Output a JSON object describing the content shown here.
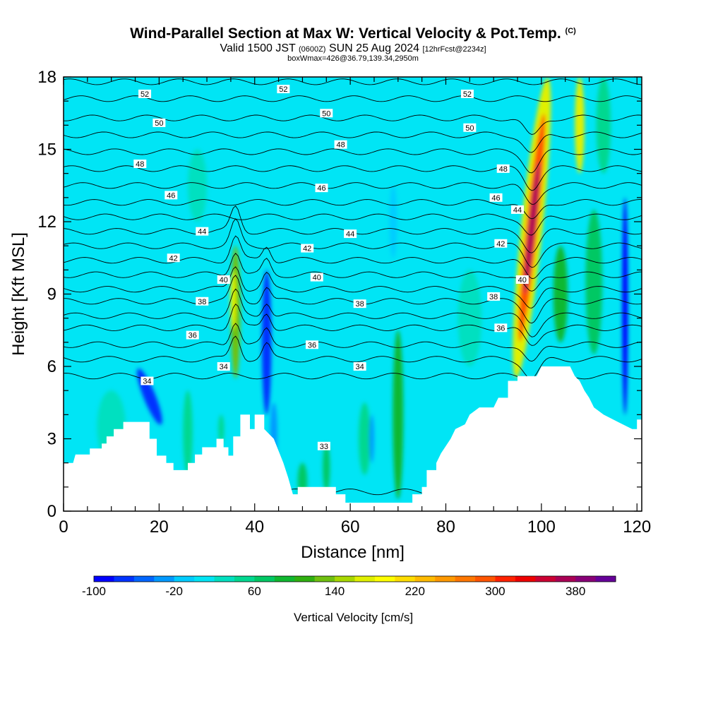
{
  "header": {
    "title": "Wind-Parallel Section at Max W: Vertical Velocity & Pot.Temp.",
    "copyright": "(C)",
    "valid_text": "Valid 1500 JST",
    "utc_text": "(0600Z)",
    "date_text": "SUN 25 Aug 2024",
    "forecast_text": "[12hrFcst@2234z]",
    "box_text": "boxWmax=426@36.79,139.34,2950m"
  },
  "chart_data": {
    "type": "heatmap",
    "xlabel": "Distance [nm]",
    "ylabel": "Height [Kft MSL]",
    "xlim": [
      0,
      121
    ],
    "ylim": [
      0,
      18
    ],
    "x_ticks": [
      0,
      20,
      40,
      60,
      80,
      100,
      120
    ],
    "y_ticks": [
      0,
      3,
      6,
      9,
      12,
      15,
      18
    ],
    "background_value_cm_s": 0,
    "terrain_kft": [
      [
        0,
        2.0
      ],
      [
        2,
        2.0
      ],
      [
        2.5,
        2.35
      ],
      [
        5.5,
        2.35
      ],
      [
        5.5,
        2.6
      ],
      [
        8,
        2.6
      ],
      [
        8,
        2.8
      ],
      [
        9,
        2.8
      ],
      [
        9,
        3.1
      ],
      [
        10.5,
        3.1
      ],
      [
        10.5,
        3.4
      ],
      [
        12.5,
        3.4
      ],
      [
        12.5,
        3.7
      ],
      [
        18,
        3.7
      ],
      [
        18,
        3.0
      ],
      [
        19.5,
        3.0
      ],
      [
        19.5,
        2.3
      ],
      [
        21.5,
        2.3
      ],
      [
        21.5,
        2.0
      ],
      [
        23,
        2.0
      ],
      [
        23,
        1.7
      ],
      [
        26,
        1.7
      ],
      [
        26,
        2.0
      ],
      [
        27.5,
        2.0
      ],
      [
        27.5,
        2.35
      ],
      [
        29,
        2.35
      ],
      [
        29,
        2.65
      ],
      [
        32,
        2.65
      ],
      [
        32,
        3.0
      ],
      [
        33.5,
        3.0
      ],
      [
        33.5,
        2.65
      ],
      [
        34.5,
        2.65
      ],
      [
        34.5,
        2.3
      ],
      [
        35.5,
        2.3
      ],
      [
        35.5,
        3.1
      ],
      [
        37,
        3.1
      ],
      [
        37,
        4.0
      ],
      [
        39,
        4.0
      ],
      [
        39,
        3.4
      ],
      [
        40,
        3.4
      ],
      [
        40,
        4.0
      ],
      [
        42,
        4.0
      ],
      [
        42,
        3.4
      ],
      [
        44,
        3.0
      ],
      [
        46,
        2.0
      ],
      [
        47,
        1.4
      ],
      [
        48,
        0.7
      ],
      [
        49,
        0.7
      ],
      [
        49,
        1.0
      ],
      [
        57,
        1.0
      ],
      [
        57,
        0.7
      ],
      [
        59,
        0.7
      ],
      [
        59,
        0.35
      ],
      [
        73,
        0.35
      ],
      [
        73,
        0.7
      ],
      [
        75,
        0.7
      ],
      [
        75,
        1.0
      ],
      [
        76,
        1.0
      ],
      [
        76,
        1.7
      ],
      [
        78,
        1.7
      ],
      [
        78,
        2.0
      ],
      [
        79,
        2.4
      ],
      [
        80,
        2.7
      ],
      [
        81,
        3.0
      ],
      [
        82,
        3.4
      ],
      [
        84,
        3.6
      ],
      [
        85,
        4.0
      ],
      [
        87,
        4.3
      ],
      [
        90,
        4.3
      ],
      [
        91,
        4.7
      ],
      [
        93,
        4.7
      ],
      [
        93,
        5.4
      ],
      [
        95,
        5.4
      ],
      [
        95,
        5.6
      ],
      [
        96,
        5.6
      ],
      [
        96,
        5.6
      ],
      [
        99,
        5.6
      ],
      [
        100,
        6.0
      ],
      [
        106,
        6.0
      ],
      [
        107,
        5.6
      ],
      [
        108,
        5.4
      ],
      [
        109,
        5.0
      ],
      [
        110,
        4.7
      ],
      [
        111,
        4.3
      ],
      [
        113,
        4.0
      ],
      [
        116,
        3.7
      ],
      [
        119,
        3.4
      ],
      [
        120,
        3.4
      ],
      [
        120,
        3.8
      ],
      [
        121,
        3.8
      ],
      [
        121,
        0
      ],
      [
        0,
        0
      ]
    ],
    "velocity_features": [
      {
        "x": 36,
        "bottom": 5.5,
        "top": 11.0,
        "width": 2.0,
        "w": 120
      },
      {
        "x": 35.5,
        "bottom": 7.5,
        "top": 10.0,
        "width": 1.2,
        "w": 170
      },
      {
        "x": 18,
        "bottom": 3.5,
        "top": 6.0,
        "width": 2.5,
        "w": -70,
        "angle": -22
      },
      {
        "x": 42.5,
        "bottom": 4.0,
        "top": 10.0,
        "width": 2.0,
        "w": -80
      },
      {
        "x": 44,
        "bottom": 2.0,
        "top": 4.5,
        "width": 1.5,
        "w": -40
      },
      {
        "x": 70,
        "bottom": 0.5,
        "top": 7.5,
        "width": 2.2,
        "w": 90
      },
      {
        "x": 69,
        "bottom": 10.5,
        "top": 13.5,
        "width": 1.6,
        "w": -20
      },
      {
        "x": 98,
        "bottom": 5.5,
        "top": 18.0,
        "width": 4.5,
        "w": 160,
        "angle": 6
      },
      {
        "x": 98,
        "bottom": 7.0,
        "top": 16.5,
        "width": 2.5,
        "w": 290,
        "angle": 6
      },
      {
        "x": 98,
        "bottom": 9.0,
        "top": 14.5,
        "width": 1.4,
        "w": 370,
        "angle": 6
      },
      {
        "x": 108,
        "bottom": 14.0,
        "top": 18.0,
        "width": 2.0,
        "w": 160
      },
      {
        "x": 104,
        "bottom": 7.0,
        "top": 11.0,
        "width": 3.0,
        "w": 80
      },
      {
        "x": 111,
        "bottom": 6.5,
        "top": 12.5,
        "width": 3.5,
        "w": 60
      },
      {
        "x": 117.5,
        "bottom": 4.0,
        "top": 13.0,
        "width": 1.2,
        "w": -90
      },
      {
        "x": 88,
        "bottom": 1.0,
        "top": 3.5,
        "width": 3.0,
        "w": 50
      },
      {
        "x": 63,
        "bottom": 1.5,
        "top": 4.5,
        "width": 2.5,
        "w": 40
      },
      {
        "x": 64.5,
        "bottom": 2.0,
        "top": 4.0,
        "width": 1.0,
        "w": -30
      },
      {
        "x": 26,
        "bottom": 1.5,
        "top": 5.0,
        "width": 2.0,
        "w": 40
      },
      {
        "x": 50,
        "bottom": 0.5,
        "top": 2.0,
        "width": 2.0,
        "w": 60
      },
      {
        "x": 55,
        "bottom": 0.8,
        "top": 2.8,
        "width": 1.5,
        "w": 60
      },
      {
        "x": 33,
        "bottom": 2.8,
        "top": 4.0,
        "width": 1.2,
        "w": 50
      },
      {
        "x": 10,
        "bottom": 2.0,
        "top": 5.0,
        "width": 6.0,
        "w": 30
      },
      {
        "x": 28,
        "bottom": 12.0,
        "top": 15.0,
        "width": 4.0,
        "w": 25
      },
      {
        "x": 85,
        "bottom": 6.0,
        "top": 10.0,
        "width": 5.0,
        "w": 35
      },
      {
        "x": 113,
        "bottom": 14.0,
        "top": 18.0,
        "width": 3.0,
        "w": 40
      }
    ],
    "isentropes": {
      "levels": [
        33,
        34,
        35,
        36,
        37,
        38,
        39,
        40,
        41,
        42,
        43,
        44,
        45,
        46,
        47,
        48,
        49,
        50,
        51,
        52,
        53
      ],
      "heights_kft": [
        0.8,
        5.6,
        6.3,
        6.9,
        7.6,
        8.1,
        8.7,
        9.2,
        9.8,
        10.4,
        11.0,
        11.6,
        12.2,
        12.8,
        13.5,
        14.2,
        14.9,
        15.6,
        16.3,
        17.1,
        17.8
      ]
    },
    "contour_labels": [
      {
        "text": "52",
        "x": 17.0,
        "y": 17.3
      },
      {
        "text": "52",
        "x": 46.0,
        "y": 17.5
      },
      {
        "text": "52",
        "x": 84.5,
        "y": 17.3
      },
      {
        "text": "50",
        "x": 20.0,
        "y": 16.1
      },
      {
        "text": "50",
        "x": 55.0,
        "y": 16.5
      },
      {
        "text": "50",
        "x": 85.0,
        "y": 15.9
      },
      {
        "text": "48",
        "x": 16.0,
        "y": 14.4
      },
      {
        "text": "48",
        "x": 58.0,
        "y": 15.2
      },
      {
        "text": "48",
        "x": 92.0,
        "y": 14.2
      },
      {
        "text": "46",
        "x": 22.5,
        "y": 13.1
      },
      {
        "text": "46",
        "x": 54.0,
        "y": 13.4
      },
      {
        "text": "46",
        "x": 90.5,
        "y": 13.0
      },
      {
        "text": "44",
        "x": 29.0,
        "y": 11.6
      },
      {
        "text": "44",
        "x": 60.0,
        "y": 11.5
      },
      {
        "text": "44",
        "x": 95.0,
        "y": 12.5
      },
      {
        "text": "42",
        "x": 23.0,
        "y": 10.5
      },
      {
        "text": "42",
        "x": 51.0,
        "y": 10.9
      },
      {
        "text": "42",
        "x": 91.5,
        "y": 11.1
      },
      {
        "text": "40",
        "x": 33.5,
        "y": 9.6
      },
      {
        "text": "40",
        "x": 53.0,
        "y": 9.7
      },
      {
        "text": "40",
        "x": 96.0,
        "y": 9.6
      },
      {
        "text": "38",
        "x": 29.0,
        "y": 8.7
      },
      {
        "text": "38",
        "x": 62.0,
        "y": 8.6
      },
      {
        "text": "38",
        "x": 90.0,
        "y": 8.9
      },
      {
        "text": "36",
        "x": 27.0,
        "y": 7.3
      },
      {
        "text": "36",
        "x": 52.0,
        "y": 6.9
      },
      {
        "text": "36",
        "x": 91.5,
        "y": 7.6
      },
      {
        "text": "34",
        "x": 17.5,
        "y": 5.4
      },
      {
        "text": "34",
        "x": 33.5,
        "y": 6.0
      },
      {
        "text": "34",
        "x": 62.0,
        "y": 6.0
      },
      {
        "text": "33",
        "x": 54.5,
        "y": 2.7
      }
    ],
    "colorbar": {
      "label": "Vertical Velocity [cm/s]",
      "min": -100,
      "max": 460,
      "step": 20,
      "tick_labels": [
        "-100",
        "-20",
        "60",
        "140",
        "220",
        "300",
        "380"
      ],
      "colors": [
        "#0000ff",
        "#0033ff",
        "#0066ff",
        "#0099ff",
        "#00ccff",
        "#00e5f5",
        "#00e0c0",
        "#00d890",
        "#00c864",
        "#10b830",
        "#30b010",
        "#70c010",
        "#a8d800",
        "#e0f000",
        "#ffff00",
        "#ffdd00",
        "#ffbb00",
        "#ff9900",
        "#ff7700",
        "#ff5500",
        "#ff2200",
        "#ee0000",
        "#cc0033",
        "#aa0055",
        "#880077",
        "#660099"
      ]
    }
  }
}
